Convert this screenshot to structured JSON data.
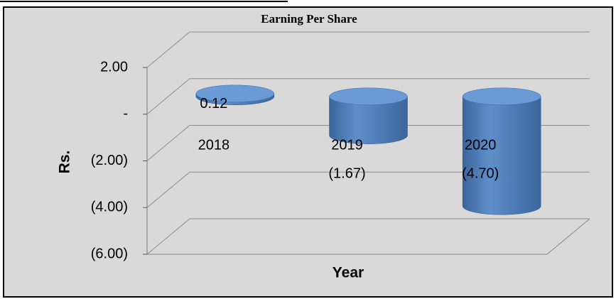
{
  "chart_data": {
    "type": "bar",
    "title": "Earning Per Share",
    "categories": [
      "2018",
      "2019",
      "2020"
    ],
    "values": [
      0.12,
      -1.67,
      -4.7
    ],
    "value_labels": [
      "0.12",
      "(1.67)",
      "(4.70)"
    ],
    "color": "#4f81bd",
    "ylabel": "Rs.",
    "xlabel": "Year",
    "ylim": [
      -6,
      2
    ],
    "yticks": [
      {
        "value": 2,
        "label": "2.00"
      },
      {
        "value": 0,
        "label": "-"
      },
      {
        "value": -2,
        "label": "(2.00)"
      },
      {
        "value": -4,
        "label": "(4.00)"
      },
      {
        "value": -6,
        "label": "(6.00)"
      }
    ],
    "grid": true
  }
}
